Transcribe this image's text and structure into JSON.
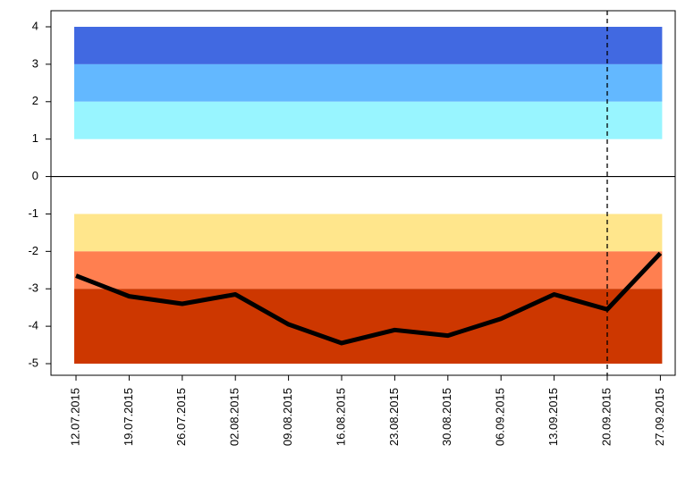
{
  "chart_data": {
    "type": "line",
    "categories": [
      "12.07.2015",
      "19.07.2015",
      "26.07.2015",
      "02.08.2015",
      "09.08.2015",
      "16.08.2015",
      "23.08.2015",
      "30.08.2015",
      "06.09.2015",
      "13.09.2015",
      "20.09.2015",
      "27.09.2015"
    ],
    "values": [
      -2.65,
      -3.2,
      -3.4,
      -3.15,
      -3.95,
      -4.45,
      -4.1,
      -4.25,
      -3.8,
      -3.15,
      -3.55,
      -2.05
    ],
    "color": "#000000",
    "ylim": [
      -5.31,
      4.43
    ],
    "yticks": [
      -5,
      -4,
      -3,
      -2,
      -1,
      0,
      1,
      2,
      3,
      4
    ],
    "bands": [
      {
        "from": 3,
        "to": 4,
        "color": "#4169e1"
      },
      {
        "from": 2,
        "to": 3,
        "color": "#63b8ff"
      },
      {
        "from": 1,
        "to": 2,
        "color": "#98f5ff"
      },
      {
        "from": -2,
        "to": -1,
        "color": "#ffe68c"
      },
      {
        "from": -3,
        "to": -2,
        "color": "#ff7f50"
      },
      {
        "from": -5,
        "to": -3,
        "color": "#cd3700"
      }
    ],
    "hline": 0,
    "vline": "20.09.2015"
  }
}
